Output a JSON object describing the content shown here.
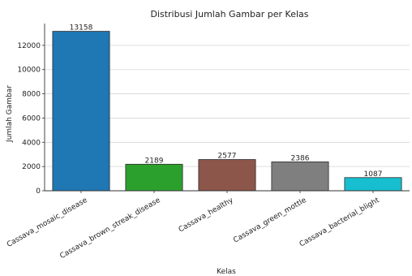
{
  "chart_data": {
    "type": "bar",
    "title": "Distribusi Jumlah Gambar per Kelas",
    "xlabel": "Kelas",
    "ylabel": "Jumlah Gambar",
    "categories": [
      "Cassava_mosaic_disease",
      "Cassava_brown_streak_disease",
      "Cassava_healthy",
      "Cassava_green_mottle",
      "Cassava_bacterial_blight"
    ],
    "values": [
      13158,
      2189,
      2577,
      2386,
      1087
    ],
    "value_labels": [
      "13158",
      "2189",
      "2577",
      "2386",
      "1087"
    ],
    "colors": [
      "#1f77b4",
      "#2ca02c",
      "#8c564b",
      "#7f7f7f",
      "#17becf"
    ],
    "ylim": [
      0,
      13800
    ],
    "yticks": [
      0,
      2000,
      4000,
      6000,
      8000,
      10000,
      12000
    ],
    "ytick_labels": [
      "0",
      "2000",
      "4000",
      "6000",
      "8000",
      "10000",
      "12000"
    ],
    "grid": true,
    "legend": "none"
  }
}
